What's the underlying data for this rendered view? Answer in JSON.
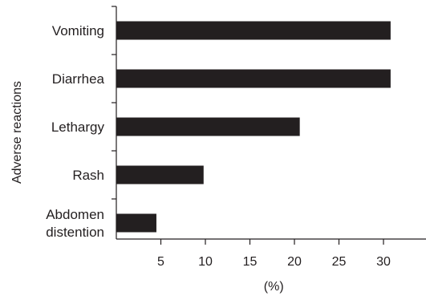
{
  "chart_data": {
    "type": "bar",
    "orientation": "horizontal",
    "categories": [
      [
        "Vomiting"
      ],
      [
        "Diarrhea"
      ],
      [
        "Lethargy"
      ],
      [
        "Rash"
      ],
      [
        "Abdomen",
        "distention"
      ]
    ],
    "values": [
      30.8,
      30.8,
      20.6,
      9.8,
      4.5
    ],
    "xlabel": "(%)",
    "ylabel": "Adverse reactions",
    "xlim": [
      0,
      35
    ],
    "xticks": [
      5,
      10,
      15,
      20,
      25,
      30
    ],
    "bar_color": "#231f20",
    "grid": false
  }
}
